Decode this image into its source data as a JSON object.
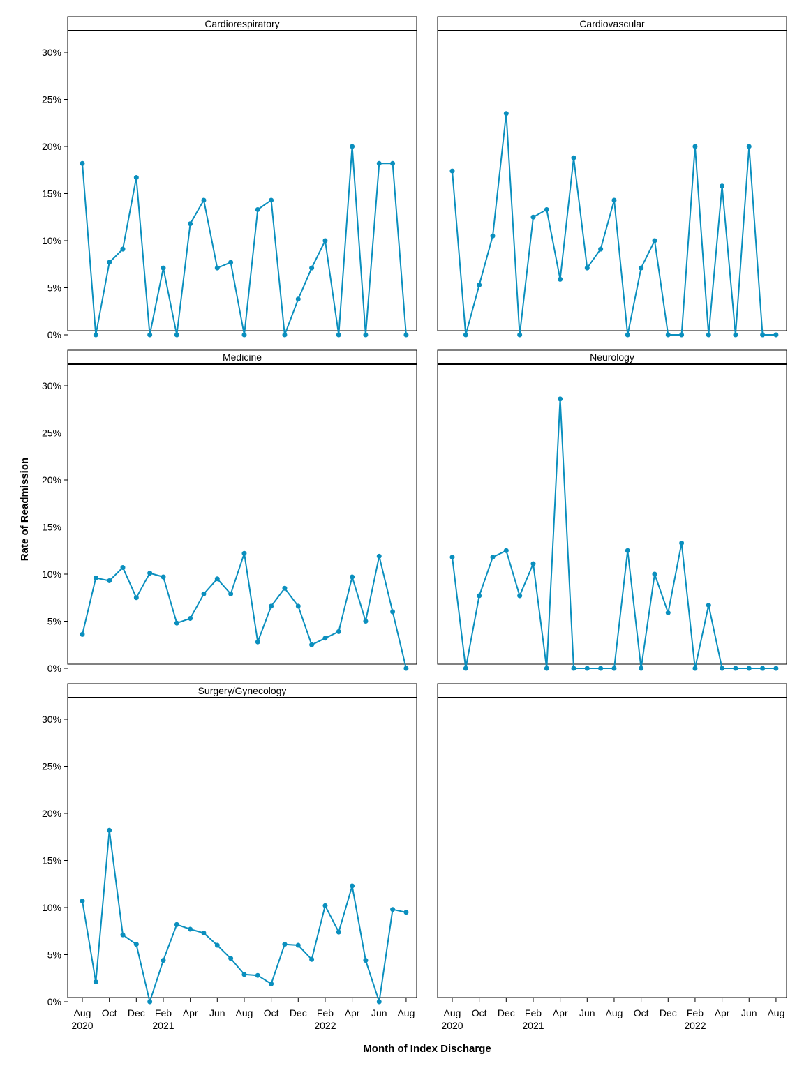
{
  "chart_data": {
    "type": "line",
    "ylabel": "Rate of Readmission",
    "xlabel": "Month of Index Discharge",
    "ylim": [
      0,
      30
    ],
    "y_ticks": [
      "0%",
      "5%",
      "10%",
      "15%",
      "20%",
      "25%",
      "30%"
    ],
    "x_months": [
      "2020-08",
      "2020-09",
      "2020-10",
      "2020-11",
      "2020-12",
      "2021-01",
      "2021-02",
      "2021-03",
      "2021-04",
      "2021-05",
      "2021-06",
      "2021-07",
      "2021-08",
      "2021-09",
      "2021-10",
      "2021-11",
      "2021-12",
      "2022-01",
      "2022-02",
      "2022-03",
      "2022-04",
      "2022-05",
      "2022-06",
      "2022-07",
      "2022-08"
    ],
    "x_tick_labels": [
      {
        "month": "Aug",
        "year": "2020"
      },
      {
        "month": "Oct",
        "year": ""
      },
      {
        "month": "Dec",
        "year": ""
      },
      {
        "month": "Feb",
        "year": "2021"
      },
      {
        "month": "Apr",
        "year": ""
      },
      {
        "month": "Jun",
        "year": ""
      },
      {
        "month": "Aug",
        "year": ""
      },
      {
        "month": "Oct",
        "year": ""
      },
      {
        "month": "Dec",
        "year": ""
      },
      {
        "month": "Feb",
        "year": "2022"
      },
      {
        "month": "Apr",
        "year": ""
      },
      {
        "month": "Jun",
        "year": ""
      },
      {
        "month": "Aug",
        "year": ""
      }
    ],
    "grid": false,
    "line_color": "#0a8fbe",
    "panels": [
      {
        "title": "Cardiorespiratory",
        "values": [
          18.2,
          0,
          7.7,
          9.1,
          16.7,
          0,
          7.1,
          0,
          11.8,
          14.3,
          7.1,
          7.7,
          0,
          13.3,
          14.3,
          0,
          3.8,
          7.1,
          10.0,
          0,
          20.0,
          0,
          18.2,
          18.2,
          0
        ]
      },
      {
        "title": "Cardiovascular",
        "values": [
          17.4,
          0,
          5.3,
          10.5,
          23.5,
          0,
          12.5,
          13.3,
          5.9,
          18.8,
          7.1,
          9.1,
          14.3,
          0,
          7.1,
          10.0,
          0,
          0,
          20.0,
          0,
          15.8,
          0,
          20.0,
          0,
          0
        ]
      },
      {
        "title": "Medicine",
        "values": [
          3.6,
          9.6,
          9.3,
          10.7,
          7.5,
          10.1,
          9.7,
          4.8,
          5.3,
          7.9,
          9.5,
          7.9,
          12.2,
          2.8,
          6.6,
          8.5,
          6.6,
          2.5,
          3.2,
          3.9,
          9.7,
          5.0,
          11.9,
          6.0,
          0
        ]
      },
      {
        "title": "Neurology",
        "values": [
          11.8,
          0,
          7.7,
          11.8,
          12.5,
          7.7,
          11.1,
          0,
          28.6,
          0,
          0,
          0,
          0,
          12.5,
          0,
          10.0,
          5.9,
          13.3,
          0,
          6.7,
          0,
          0,
          0,
          0,
          0
        ]
      },
      {
        "title": "Surgery/Gynecology",
        "values": [
          10.7,
          2.1,
          18.2,
          7.1,
          6.1,
          0,
          4.4,
          8.2,
          7.7,
          7.3,
          6.0,
          4.6,
          2.9,
          2.8,
          1.9,
          6.1,
          6.0,
          4.5,
          10.2,
          7.4,
          12.3,
          4.4,
          0,
          9.8,
          9.5
        ]
      },
      {
        "title": "",
        "values": []
      }
    ]
  }
}
